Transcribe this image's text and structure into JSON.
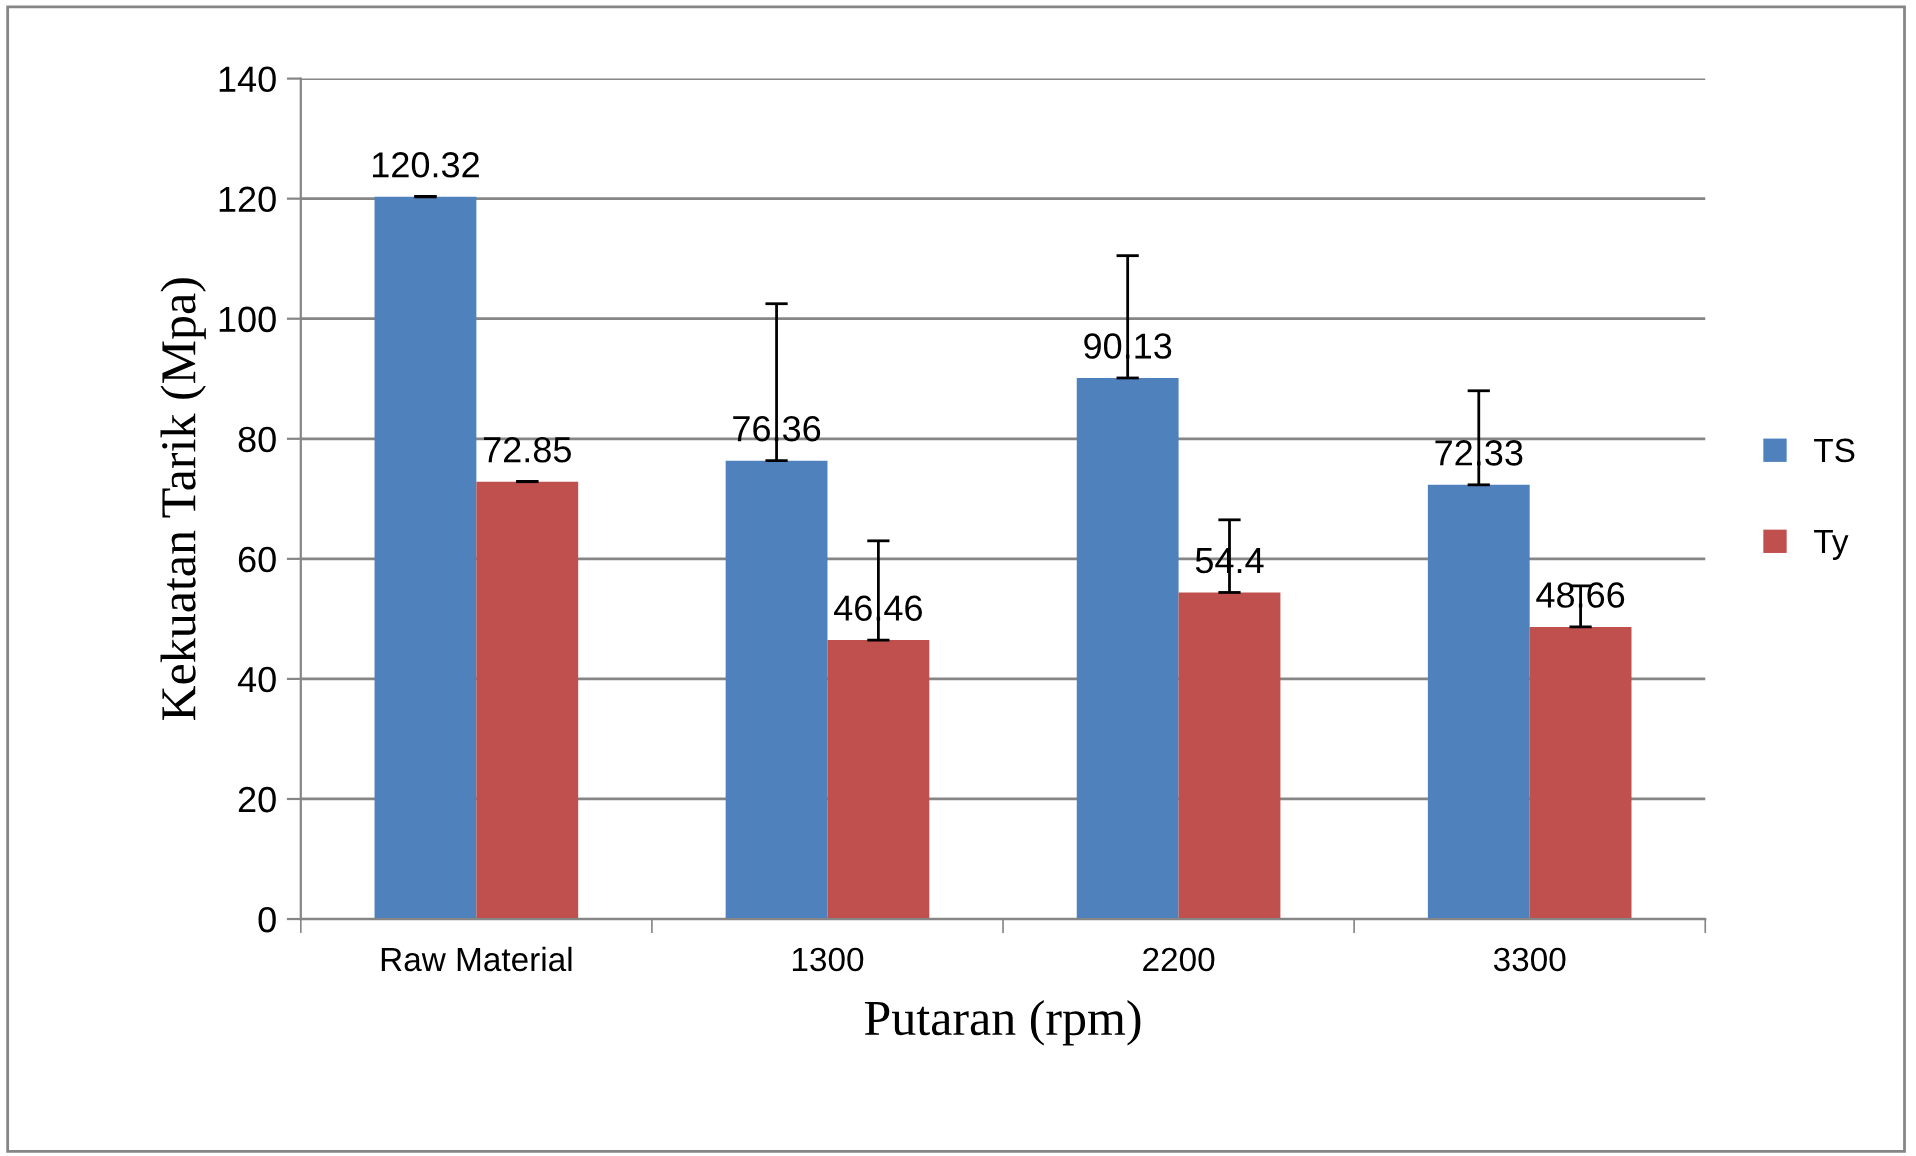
{
  "chart_data": {
    "type": "bar",
    "xlabel": "Putaran (rpm)",
    "ylabel": "Kekuatan Tarik (Mpa)",
    "categories": [
      "Raw Material",
      "1300",
      "2200",
      "3300"
    ],
    "series": [
      {
        "name": "TS",
        "color": "#4f81bd",
        "values": [
          120.32,
          76.36,
          90.13,
          72.33
        ],
        "errors": [
          [
            120.32,
            120.4
          ],
          [
            76.36,
            102.5
          ],
          [
            90.13,
            110.5
          ],
          [
            72.33,
            88
          ]
        ]
      },
      {
        "name": "Ty",
        "color": "#c0504d",
        "values": [
          72.85,
          46.46,
          54.4,
          48.66
        ],
        "errors": [
          [
            72.85,
            72.9
          ],
          [
            46.46,
            63
          ],
          [
            54.4,
            66.5
          ],
          [
            48.66,
            55.5
          ]
        ]
      }
    ],
    "ylim": [
      0,
      140
    ],
    "yticks": [
      0,
      20,
      40,
      60,
      80,
      100,
      120,
      140
    ],
    "grid": "y",
    "legend": "right",
    "data_labels": true
  }
}
